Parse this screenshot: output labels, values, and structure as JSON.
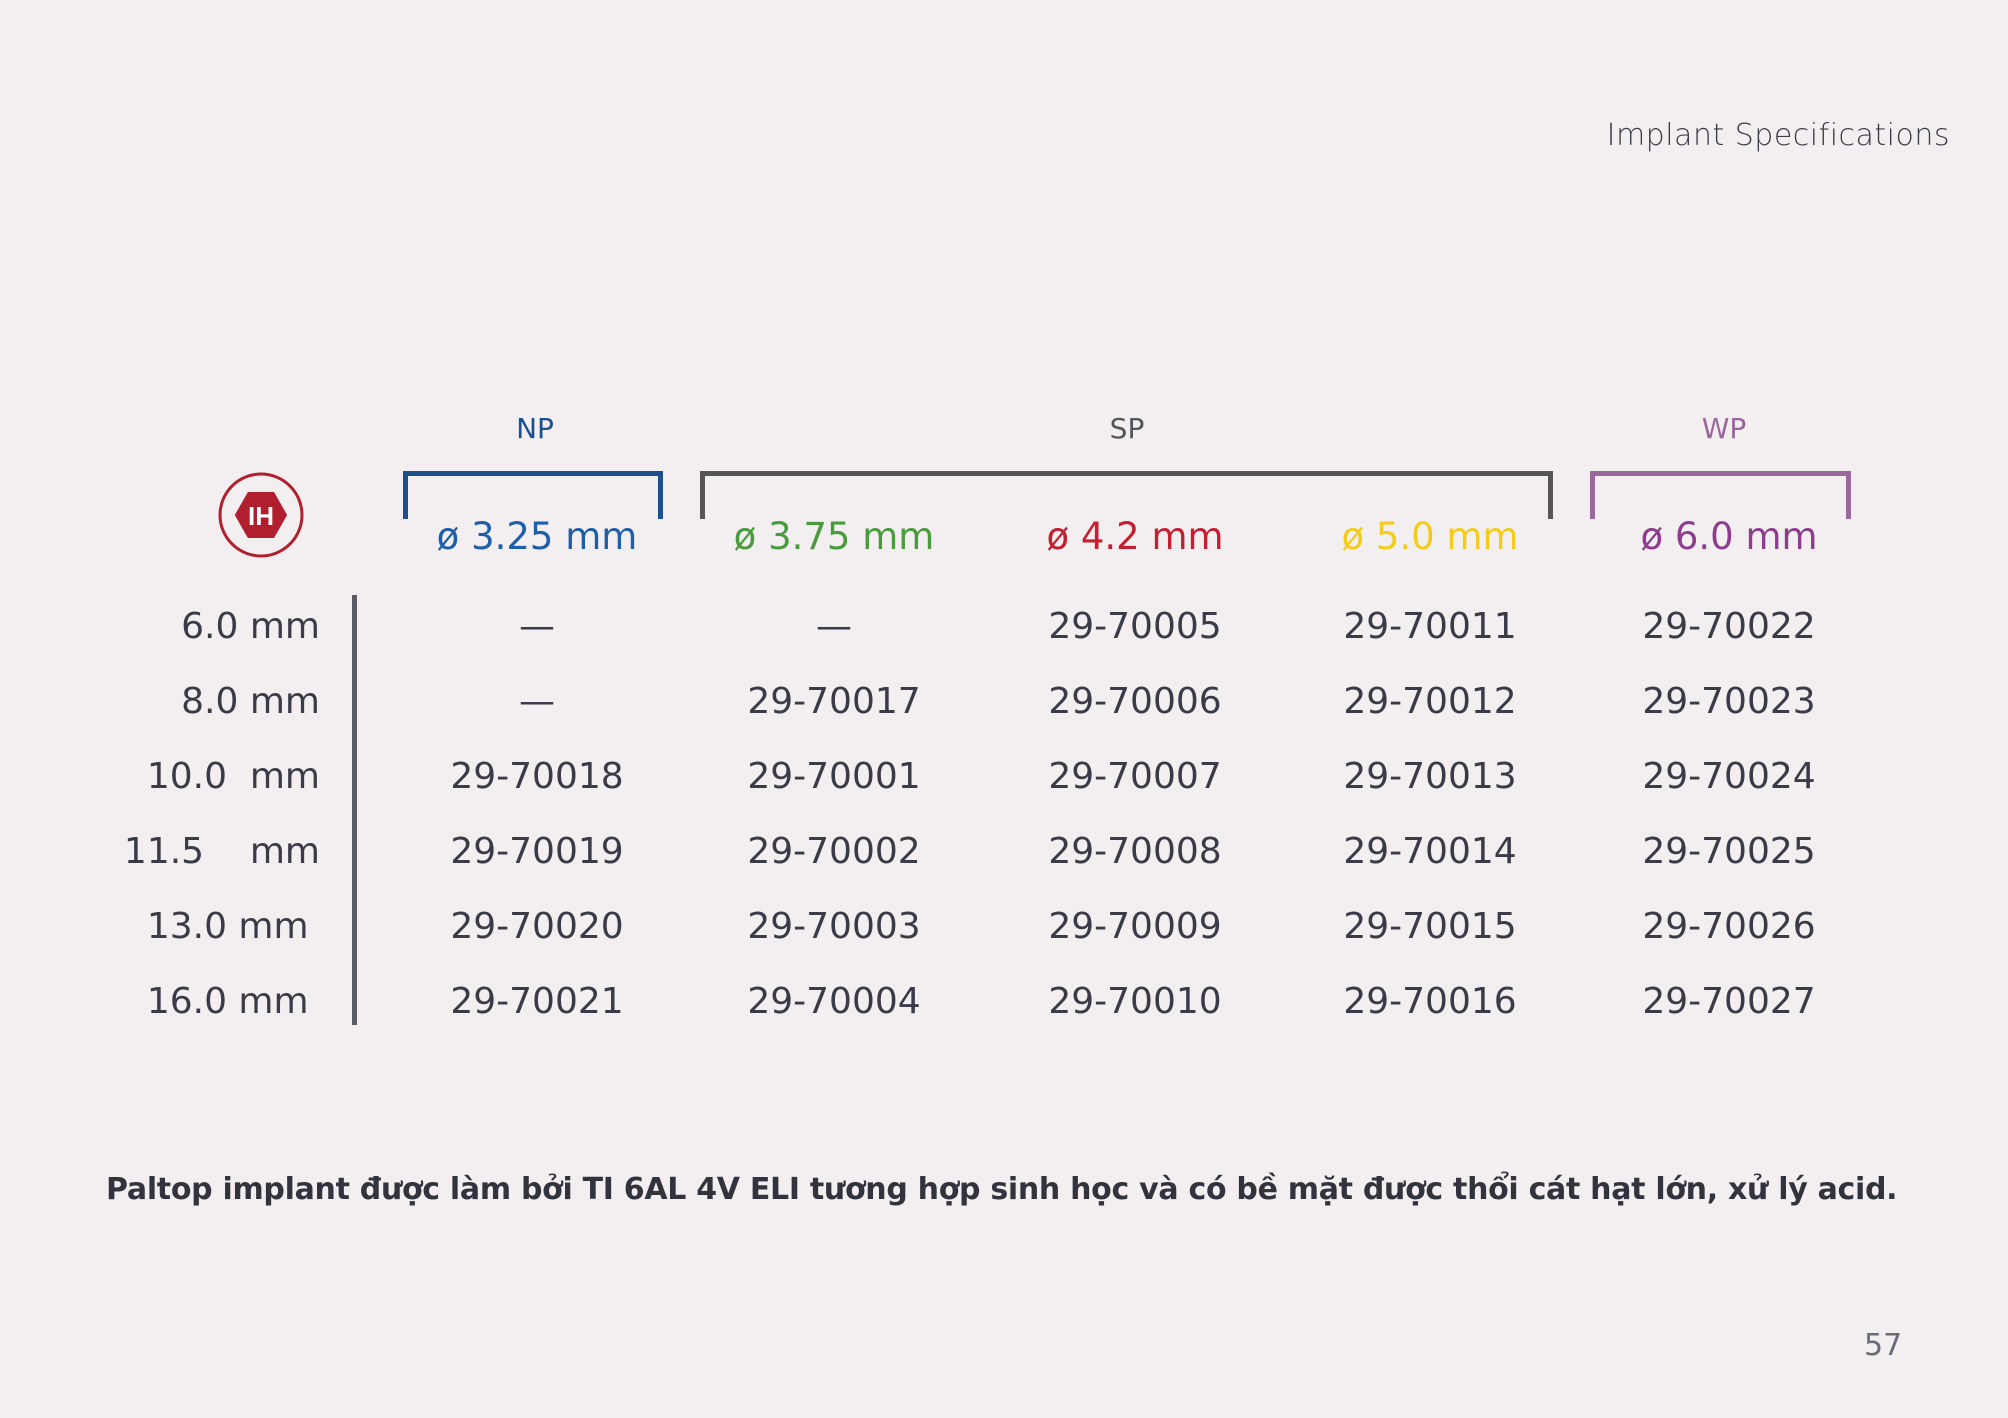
{
  "header": {
    "title": "Implant Specifications"
  },
  "logo": {
    "text": "IH",
    "color": "#b11f2f"
  },
  "groups": [
    {
      "label": "NP",
      "color": "#1d4f8c"
    },
    {
      "label": "SP",
      "color": "#55555a"
    },
    {
      "label": "WP",
      "color": "#99679a"
    }
  ],
  "diameters": [
    {
      "label": "ø 3.25 mm",
      "color": "#1f5fa8"
    },
    {
      "label": "ø 3.75 mm",
      "color": "#4a9a3e"
    },
    {
      "label": "ø 4.2 mm",
      "color": "#c42031"
    },
    {
      "label": "ø 5.0 mm",
      "color": "#f2cb1c"
    },
    {
      "label": "ø 6.0 mm",
      "color": "#8e3c8c"
    }
  ],
  "rows": [
    {
      "length": "6.0 mm",
      "cells": [
        "—",
        "—",
        "29-70005",
        "29-70011",
        "29-70022"
      ]
    },
    {
      "length": "8.0 mm",
      "cells": [
        "—",
        "29-70017",
        "29-70006",
        "29-70012",
        "29-70023"
      ]
    },
    {
      "length": "10.0  mm",
      "cells": [
        "29-70018",
        "29-70001",
        "29-70007",
        "29-70013",
        "29-70024"
      ]
    },
    {
      "length": "11.5    mm",
      "cells": [
        "29-70019",
        "29-70002",
        "29-70008",
        "29-70014",
        "29-70025"
      ]
    },
    {
      "length": "13.0 mm ",
      "cells": [
        "29-70020",
        "29-70003",
        "29-70009",
        "29-70015",
        "29-70026"
      ]
    },
    {
      "length": "16.0 mm ",
      "cells": [
        "29-70021",
        "29-70004",
        "29-70010",
        "29-70016",
        "29-70027"
      ]
    }
  ],
  "footer": {
    "note": "Paltop implant được làm bởi TI 6AL 4V ELI tương hợp sinh học và có bề mặt được thổi cát hạt lớn, xử lý acid."
  },
  "page_number": "57"
}
